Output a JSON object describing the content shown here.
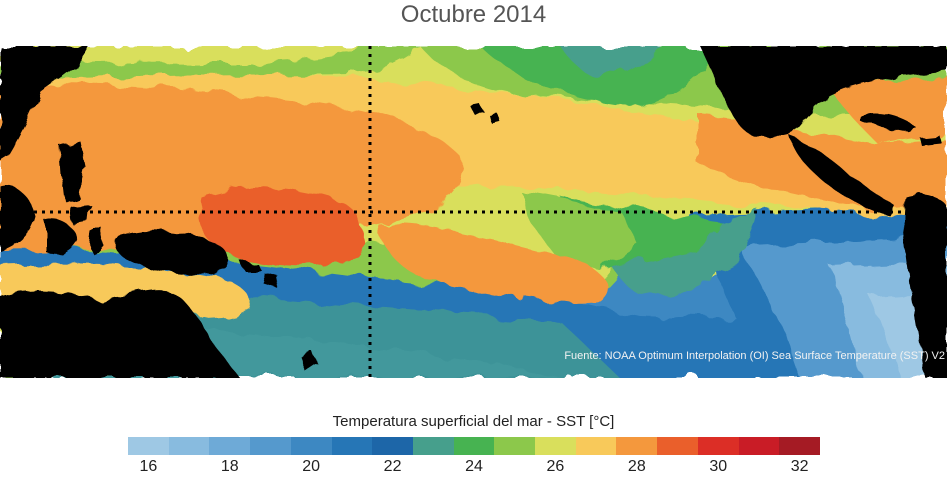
{
  "title": "Octubre 2014",
  "source": "Fuente: NOAA Optimum Interpolation (OI) Sea Surface Temperature (SST) V2",
  "colorbar": {
    "title": "Temperatura superficial del mar - SST  [°C]",
    "ticks": [
      "16",
      "18",
      "20",
      "22",
      "24",
      "26",
      "28",
      "30",
      "32"
    ],
    "colors": [
      "#9ec8e4",
      "#88bbdf",
      "#6eaad7",
      "#5599cd",
      "#3d88c2",
      "#2676b6",
      "#1d66a8",
      "#469f8c",
      "#47b351",
      "#8cc84b",
      "#d9df5c",
      "#f8c95a",
      "#f4983d",
      "#ea5f2b",
      "#dc2e26",
      "#c91c26",
      "#a51b24"
    ]
  },
  "map": {
    "region": "Pacífico tropical",
    "land_color": "#000000",
    "reference_lines": [
      "equator",
      "dateline"
    ]
  }
}
